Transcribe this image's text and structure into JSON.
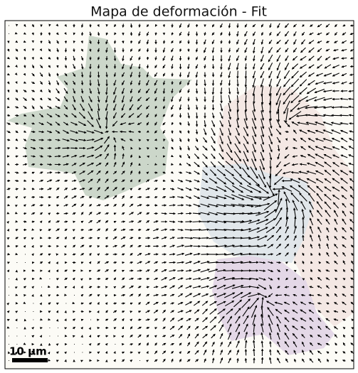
{
  "figure": {
    "title": "Mapa de deformación - Fit",
    "scale_bar": "10 µm"
  }
}
